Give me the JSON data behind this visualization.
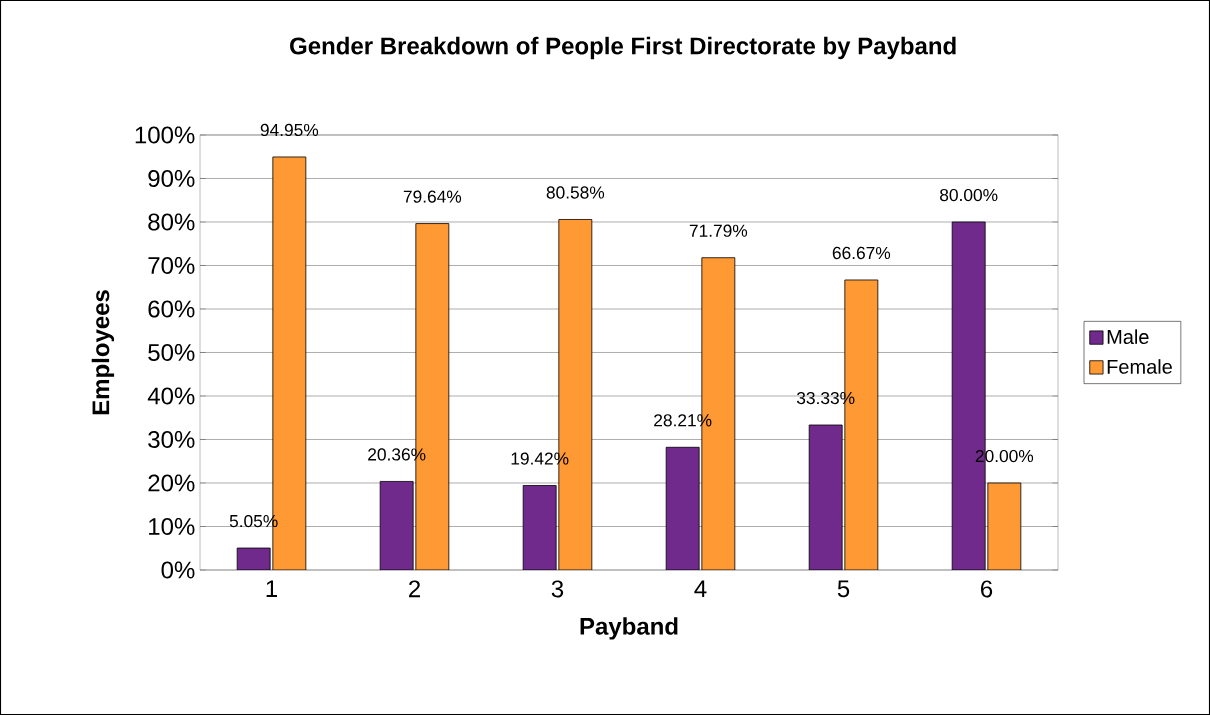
{
  "chart_data": {
    "type": "bar",
    "title": "Gender Breakdown of People First Directorate by Payband",
    "xlabel": "Payband",
    "ylabel": "Employees",
    "categories": [
      "1",
      "2",
      "3",
      "4",
      "5",
      "6"
    ],
    "series": [
      {
        "name": "Male",
        "color": "#702A8C",
        "values": [
          5.05,
          20.36,
          19.42,
          28.21,
          33.33,
          80.0
        ],
        "value_labels": [
          "5.05%",
          "20.36%",
          "19.42%",
          "28.21%",
          "33.33%",
          "80.00%"
        ]
      },
      {
        "name": "Female",
        "color": "#FF9933",
        "values": [
          94.95,
          79.64,
          80.58,
          71.79,
          66.67,
          20.0
        ],
        "value_labels": [
          "94.95%",
          "79.64%",
          "80.58%",
          "71.79%",
          "66.67%",
          "20.00%"
        ]
      }
    ],
    "ylim": [
      0,
      100
    ],
    "yticks": [
      {
        "value": 0,
        "label": "0%"
      },
      {
        "value": 10,
        "label": "10%"
      },
      {
        "value": 20,
        "label": "20%"
      },
      {
        "value": 30,
        "label": "30%"
      },
      {
        "value": 40,
        "label": "40%"
      },
      {
        "value": 50,
        "label": "50%"
      },
      {
        "value": 60,
        "label": "60%"
      },
      {
        "value": 70,
        "label": "70%"
      },
      {
        "value": 80,
        "label": "80%"
      },
      {
        "value": 90,
        "label": "90%"
      },
      {
        "value": 100,
        "label": "100%"
      }
    ],
    "grid": "y",
    "legend": "right"
  }
}
